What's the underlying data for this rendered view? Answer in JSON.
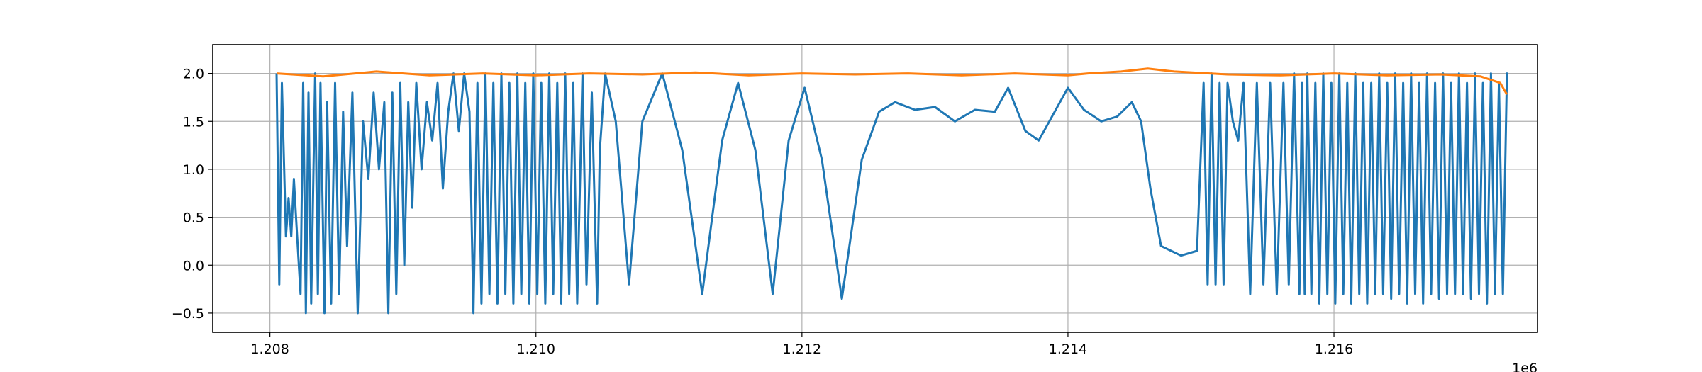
{
  "chart_data": {
    "type": "line",
    "title": "",
    "xlabel": "",
    "ylabel": "",
    "x_offset_label": "1e6",
    "xlim": [
      1.20757,
      1.21753
    ],
    "ylim": [
      -0.7,
      2.3
    ],
    "grid": true,
    "x_ticks": [
      {
        "value": 1.208,
        "label": "1.208"
      },
      {
        "value": 1.21,
        "label": "1.210"
      },
      {
        "value": 1.212,
        "label": "1.212"
      },
      {
        "value": 1.214,
        "label": "1.214"
      },
      {
        "value": 1.216,
        "label": "1.216"
      }
    ],
    "y_ticks": [
      {
        "value": -0.5,
        "label": "−0.5"
      },
      {
        "value": 0.0,
        "label": "0.0"
      },
      {
        "value": 0.5,
        "label": "0.5"
      },
      {
        "value": 1.0,
        "label": "1.0"
      },
      {
        "value": 1.5,
        "label": "1.5"
      },
      {
        "value": 2.0,
        "label": "2.0"
      }
    ],
    "series": [
      {
        "color": "#1f77b4",
        "points": [
          [
            1.20805,
            2.0
          ],
          [
            1.20807,
            -0.2
          ],
          [
            1.20809,
            1.9
          ],
          [
            1.20812,
            0.3
          ],
          [
            1.20814,
            0.7
          ],
          [
            1.20816,
            0.3
          ],
          [
            1.20818,
            0.9
          ],
          [
            1.2082,
            0.4
          ],
          [
            1.20823,
            -0.3
          ],
          [
            1.20825,
            1.9
          ],
          [
            1.20827,
            -0.5
          ],
          [
            1.20829,
            1.8
          ],
          [
            1.20831,
            -0.4
          ],
          [
            1.20834,
            2.0
          ],
          [
            1.20836,
            -0.3
          ],
          [
            1.20838,
            1.9
          ],
          [
            1.20841,
            -0.5
          ],
          [
            1.20843,
            1.7
          ],
          [
            1.20846,
            -0.4
          ],
          [
            1.20849,
            1.9
          ],
          [
            1.20852,
            -0.3
          ],
          [
            1.20855,
            1.6
          ],
          [
            1.20858,
            0.2
          ],
          [
            1.20862,
            1.8
          ],
          [
            1.20866,
            -0.5
          ],
          [
            1.2087,
            1.5
          ],
          [
            1.20874,
            0.9
          ],
          [
            1.20878,
            1.8
          ],
          [
            1.20882,
            1.0
          ],
          [
            1.20886,
            1.7
          ],
          [
            1.20889,
            -0.5
          ],
          [
            1.20892,
            1.8
          ],
          [
            1.20895,
            -0.3
          ],
          [
            1.20898,
            1.9
          ],
          [
            1.20901,
            0.0
          ],
          [
            1.20904,
            1.7
          ],
          [
            1.20907,
            0.6
          ],
          [
            1.2091,
            1.9
          ],
          [
            1.20914,
            1.0
          ],
          [
            1.20918,
            1.7
          ],
          [
            1.20922,
            1.3
          ],
          [
            1.20926,
            1.9
          ],
          [
            1.2093,
            0.8
          ],
          [
            1.20934,
            1.6
          ],
          [
            1.20938,
            2.0
          ],
          [
            1.20942,
            1.4
          ],
          [
            1.20946,
            2.0
          ],
          [
            1.2095,
            1.6
          ],
          [
            1.20953,
            -0.5
          ],
          [
            1.20956,
            1.9
          ],
          [
            1.20959,
            -0.4
          ],
          [
            1.20962,
            2.0
          ],
          [
            1.20965,
            -0.3
          ],
          [
            1.20968,
            1.9
          ],
          [
            1.20971,
            -0.4
          ],
          [
            1.20974,
            2.0
          ],
          [
            1.20977,
            -0.3
          ],
          [
            1.2098,
            1.9
          ],
          [
            1.20983,
            -0.4
          ],
          [
            1.20986,
            2.0
          ],
          [
            1.20989,
            -0.3
          ],
          [
            1.20992,
            1.9
          ],
          [
            1.20995,
            -0.4
          ],
          [
            1.20998,
            2.0
          ],
          [
            1.21001,
            -0.3
          ],
          [
            1.21004,
            1.9
          ],
          [
            1.21007,
            -0.4
          ],
          [
            1.2101,
            2.0
          ],
          [
            1.21013,
            -0.3
          ],
          [
            1.21016,
            1.9
          ],
          [
            1.21019,
            -0.4
          ],
          [
            1.21022,
            2.0
          ],
          [
            1.21025,
            -0.3
          ],
          [
            1.21028,
            1.9
          ],
          [
            1.21031,
            -0.4
          ],
          [
            1.21035,
            2.0
          ],
          [
            1.21038,
            -0.2
          ],
          [
            1.21042,
            1.8
          ],
          [
            1.21046,
            -0.4
          ],
          [
            1.21048,
            1.2
          ],
          [
            1.21052,
            2.0
          ],
          [
            1.2106,
            1.5
          ],
          [
            1.2107,
            -0.2
          ],
          [
            1.2108,
            1.5
          ],
          [
            1.21095,
            2.0
          ],
          [
            1.2111,
            1.2
          ],
          [
            1.21125,
            -0.3
          ],
          [
            1.2114,
            1.3
          ],
          [
            1.21152,
            1.9
          ],
          [
            1.21165,
            1.2
          ],
          [
            1.21178,
            -0.3
          ],
          [
            1.2119,
            1.3
          ],
          [
            1.21202,
            1.85
          ],
          [
            1.21215,
            1.1
          ],
          [
            1.2123,
            -0.35
          ],
          [
            1.21245,
            1.1
          ],
          [
            1.21258,
            1.6
          ],
          [
            1.2127,
            1.7
          ],
          [
            1.21285,
            1.62
          ],
          [
            1.213,
            1.65
          ],
          [
            1.21315,
            1.5
          ],
          [
            1.2133,
            1.62
          ],
          [
            1.21345,
            1.6
          ],
          [
            1.21355,
            1.85
          ],
          [
            1.21368,
            1.4
          ],
          [
            1.21378,
            1.3
          ],
          [
            1.2139,
            1.6
          ],
          [
            1.214,
            1.85
          ],
          [
            1.21412,
            1.62
          ],
          [
            1.21425,
            1.5
          ],
          [
            1.21437,
            1.55
          ],
          [
            1.21448,
            1.7
          ],
          [
            1.21455,
            1.5
          ],
          [
            1.21462,
            0.8
          ],
          [
            1.2147,
            0.2
          ],
          [
            1.21485,
            0.1
          ],
          [
            1.21497,
            0.15
          ],
          [
            1.21502,
            1.9
          ],
          [
            1.21505,
            -0.2
          ],
          [
            1.21508,
            2.0
          ],
          [
            1.21511,
            -0.2
          ],
          [
            1.21514,
            1.9
          ],
          [
            1.21517,
            -0.2
          ],
          [
            1.2152,
            1.9
          ],
          [
            1.21524,
            1.5
          ],
          [
            1.21528,
            1.3
          ],
          [
            1.21532,
            1.9
          ],
          [
            1.21537,
            -0.3
          ],
          [
            1.21542,
            1.9
          ],
          [
            1.21547,
            -0.2
          ],
          [
            1.21552,
            1.9
          ],
          [
            1.21557,
            -0.3
          ],
          [
            1.21562,
            1.9
          ],
          [
            1.21566,
            -0.2
          ],
          [
            1.2157,
            2.0
          ],
          [
            1.21574,
            -0.3
          ],
          [
            1.21576,
            1.9
          ],
          [
            1.21578,
            -0.3
          ],
          [
            1.2158,
            2.0
          ],
          [
            1.21583,
            -0.3
          ],
          [
            1.21586,
            1.9
          ],
          [
            1.21589,
            -0.4
          ],
          [
            1.21592,
            2.0
          ],
          [
            1.21595,
            -0.3
          ],
          [
            1.21598,
            1.9
          ],
          [
            1.21601,
            -0.4
          ],
          [
            1.21604,
            2.0
          ],
          [
            1.21607,
            -0.3
          ],
          [
            1.2161,
            1.9
          ],
          [
            1.21613,
            -0.4
          ],
          [
            1.21616,
            2.0
          ],
          [
            1.21619,
            -0.3
          ],
          [
            1.21622,
            1.9
          ],
          [
            1.21625,
            -0.4
          ],
          [
            1.21628,
            1.9
          ],
          [
            1.21631,
            -0.3
          ],
          [
            1.21634,
            2.0
          ],
          [
            1.21637,
            -0.3
          ],
          [
            1.2164,
            1.9
          ],
          [
            1.21643,
            -0.35
          ],
          [
            1.21646,
            2.0
          ],
          [
            1.21649,
            -0.3
          ],
          [
            1.21652,
            1.9
          ],
          [
            1.21655,
            -0.4
          ],
          [
            1.21658,
            2.0
          ],
          [
            1.21661,
            -0.3
          ],
          [
            1.21664,
            1.9
          ],
          [
            1.21667,
            -0.4
          ],
          [
            1.2167,
            2.0
          ],
          [
            1.21673,
            -0.3
          ],
          [
            1.21676,
            1.9
          ],
          [
            1.21679,
            -0.35
          ],
          [
            1.21682,
            2.0
          ],
          [
            1.21685,
            -0.3
          ],
          [
            1.21688,
            1.9
          ],
          [
            1.21691,
            -0.3
          ],
          [
            1.21694,
            2.0
          ],
          [
            1.21697,
            -0.3
          ],
          [
            1.217,
            1.9
          ],
          [
            1.21703,
            -0.35
          ],
          [
            1.21706,
            2.0
          ],
          [
            1.21709,
            -0.3
          ],
          [
            1.21712,
            1.9
          ],
          [
            1.21715,
            -0.4
          ],
          [
            1.21718,
            2.0
          ],
          [
            1.21721,
            -0.3
          ],
          [
            1.21724,
            1.9
          ],
          [
            1.21727,
            -0.3
          ],
          [
            1.2173,
            2.0
          ],
          [
            1.2173,
            1.9
          ]
        ]
      },
      {
        "color": "#ff7f0e",
        "points": [
          [
            1.20805,
            2.0
          ],
          [
            1.2084,
            1.97
          ],
          [
            1.2088,
            2.02
          ],
          [
            1.2092,
            1.98
          ],
          [
            1.2096,
            2.0
          ],
          [
            1.21,
            1.98
          ],
          [
            1.2104,
            2.0
          ],
          [
            1.2108,
            1.99
          ],
          [
            1.2112,
            2.01
          ],
          [
            1.2116,
            1.98
          ],
          [
            1.212,
            2.0
          ],
          [
            1.2124,
            1.99
          ],
          [
            1.2128,
            2.0
          ],
          [
            1.2132,
            1.98
          ],
          [
            1.2136,
            2.0
          ],
          [
            1.214,
            1.98
          ],
          [
            1.21415,
            2.0
          ],
          [
            1.2144,
            2.02
          ],
          [
            1.2146,
            2.05
          ],
          [
            1.2148,
            2.02
          ],
          [
            1.2152,
            1.99
          ],
          [
            1.2156,
            1.98
          ],
          [
            1.216,
            2.0
          ],
          [
            1.2164,
            1.98
          ],
          [
            1.2168,
            1.99
          ],
          [
            1.2171,
            1.97
          ],
          [
            1.21725,
            1.9
          ],
          [
            1.2173,
            1.78
          ]
        ]
      }
    ]
  }
}
